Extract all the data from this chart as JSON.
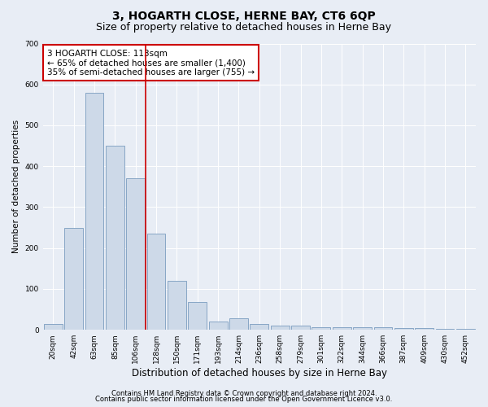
{
  "title": "3, HOGARTH CLOSE, HERNE BAY, CT6 6QP",
  "subtitle": "Size of property relative to detached houses in Herne Bay",
  "xlabel": "Distribution of detached houses by size in Herne Bay",
  "ylabel": "Number of detached properties",
  "categories": [
    "20sqm",
    "42sqm",
    "63sqm",
    "85sqm",
    "106sqm",
    "128sqm",
    "150sqm",
    "171sqm",
    "193sqm",
    "214sqm",
    "236sqm",
    "258sqm",
    "279sqm",
    "301sqm",
    "322sqm",
    "344sqm",
    "366sqm",
    "387sqm",
    "409sqm",
    "430sqm",
    "452sqm"
  ],
  "values": [
    15,
    250,
    580,
    450,
    370,
    235,
    120,
    68,
    20,
    28,
    15,
    10,
    10,
    7,
    6,
    7,
    6,
    4,
    4,
    3,
    3
  ],
  "bar_color": "#cdd9e8",
  "bar_edge_color": "#7a9cbf",
  "vline_x": 4.5,
  "vline_color": "#cc0000",
  "annotation_line1": "3 HOGARTH CLOSE: 113sqm",
  "annotation_line2": "← 65% of detached houses are smaller (1,400)",
  "annotation_line3": "35% of semi-detached houses are larger (755) →",
  "annotation_box_color": "#cc0000",
  "ylim": [
    0,
    700
  ],
  "yticks": [
    0,
    100,
    200,
    300,
    400,
    500,
    600,
    700
  ],
  "bg_color": "#e8edf5",
  "plot_bg_color": "#e8edf5",
  "footer1": "Contains HM Land Registry data © Crown copyright and database right 2024.",
  "footer2": "Contains public sector information licensed under the Open Government Licence v3.0.",
  "title_fontsize": 10,
  "subtitle_fontsize": 9,
  "xlabel_fontsize": 8.5,
  "ylabel_fontsize": 7.5,
  "tick_fontsize": 6.5,
  "annotation_fontsize": 7.5,
  "footer_fontsize": 6
}
